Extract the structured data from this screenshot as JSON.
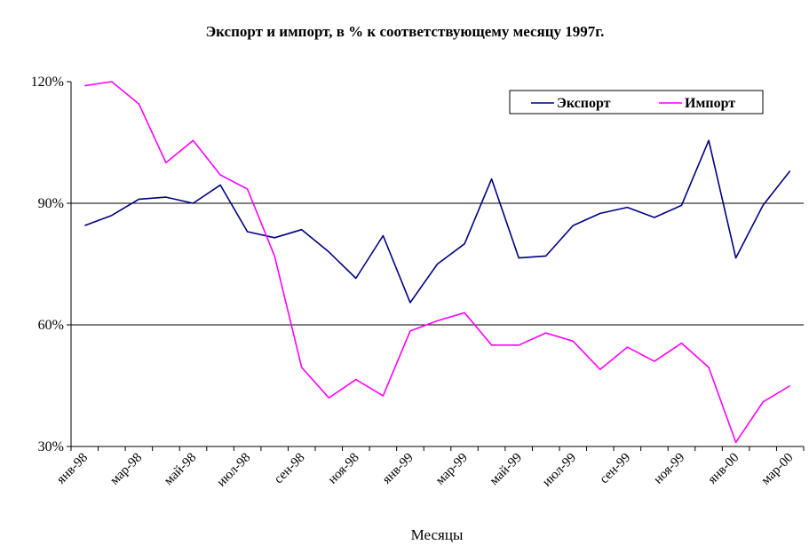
{
  "chart_data": {
    "type": "line",
    "title": "Экспорт и импорт, в % к соответствующему месяцу 1997г.",
    "xlabel": "Месяцы",
    "ylabel": "",
    "ylim": [
      30,
      120
    ],
    "yticks": [
      "30%",
      "60%",
      "90%",
      "120%"
    ],
    "ytick_values": [
      30,
      60,
      90,
      120
    ],
    "gridlines_y": [
      60,
      90
    ],
    "legend_position": "top-right",
    "x": [
      "янв-98",
      "фев-98",
      "мар-98",
      "апр-98",
      "май-98",
      "июн-98",
      "июл-98",
      "авг-98",
      "сен-98",
      "окт-98",
      "ноя-98",
      "дек-98",
      "янв-99",
      "фев-99",
      "мар-99",
      "апр-99",
      "май-99",
      "июн-99",
      "июл-99",
      "авг-99",
      "сен-99",
      "окт-99",
      "ноя-99",
      "дек-99",
      "янв-00",
      "фев-00",
      "мар-00"
    ],
    "xtick_labels": [
      "янв-98",
      "мар-98",
      "май-98",
      "июл-98",
      "сен-98",
      "ноя-98",
      "янв-99",
      "мар-99",
      "май-99",
      "июл-99",
      "сен-99",
      "ноя-99",
      "янв-00",
      "мар-00"
    ],
    "series": [
      {
        "name": "Экспорт",
        "color": "#000080",
        "values": [
          84.5,
          87,
          91,
          91.5,
          90,
          94.5,
          83,
          81.5,
          83.5,
          78,
          71.5,
          82,
          65.5,
          75,
          80,
          96,
          76.5,
          77,
          84.5,
          87.5,
          89,
          86.5,
          89.5,
          105.5,
          76.5,
          89.5,
          98
        ]
      },
      {
        "name": "Импорт",
        "color": "#ff00ff",
        "values": [
          119,
          120,
          114.5,
          100,
          105.5,
          97,
          93.5,
          77,
          49.5,
          42,
          46.5,
          42.5,
          58.5,
          61,
          63,
          55,
          55,
          58,
          56,
          49,
          54.5,
          51,
          55.5,
          49.5,
          31,
          41,
          45
        ]
      }
    ]
  }
}
